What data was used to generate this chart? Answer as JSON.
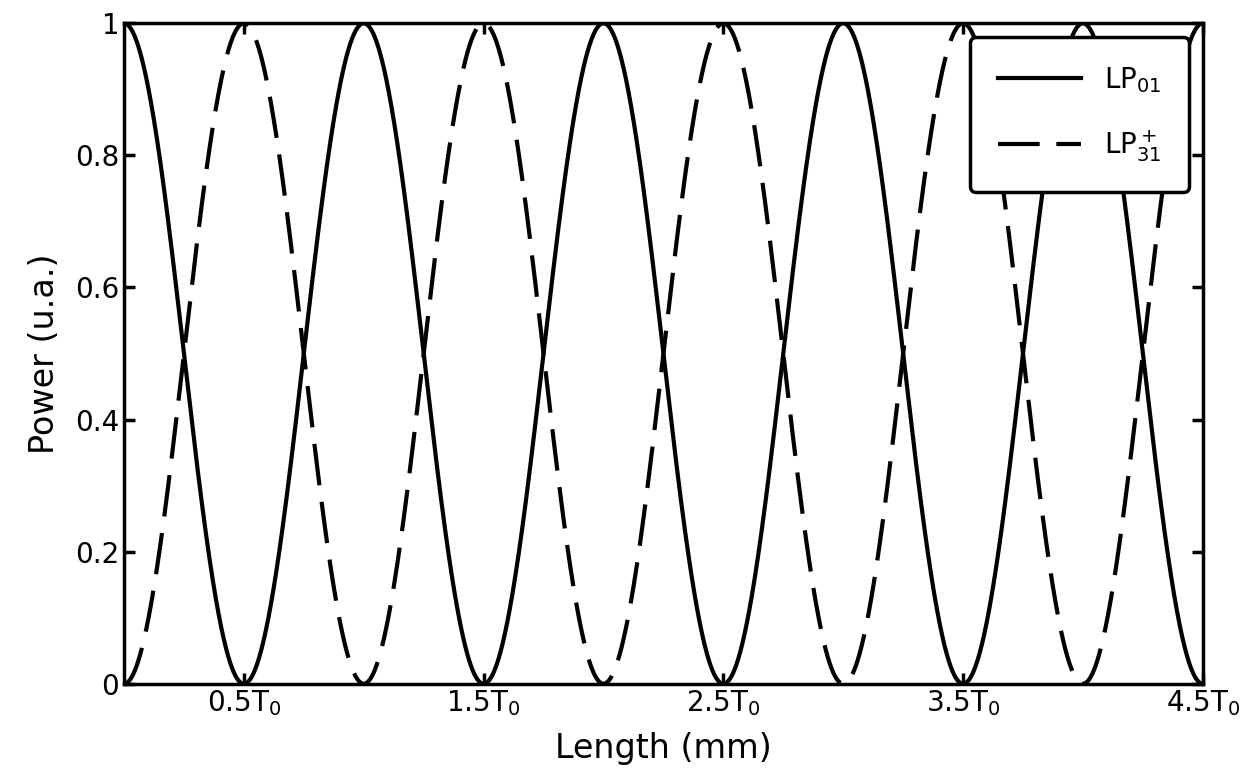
{
  "title": "",
  "xlabel": "Length (mm)",
  "ylabel": "Power (u.a.)",
  "xlim": [
    0,
    4.5
  ],
  "ylim": [
    0,
    1
  ],
  "xtick_positions": [
    0.5,
    1.5,
    2.5,
    3.5,
    4.5
  ],
  "ytick_positions": [
    0,
    0.2,
    0.4,
    0.6,
    0.8,
    1.0
  ],
  "ytick_labels": [
    "0",
    "0.2",
    "0.4",
    "0.6",
    "0.8",
    "1"
  ],
  "line_color": "#000000",
  "linewidth": 3.0,
  "background_color": "#ffffff",
  "legend_fontsize": 20,
  "axis_label_fontsize": 24,
  "tick_fontsize": 20,
  "spine_linewidth": 2.5
}
